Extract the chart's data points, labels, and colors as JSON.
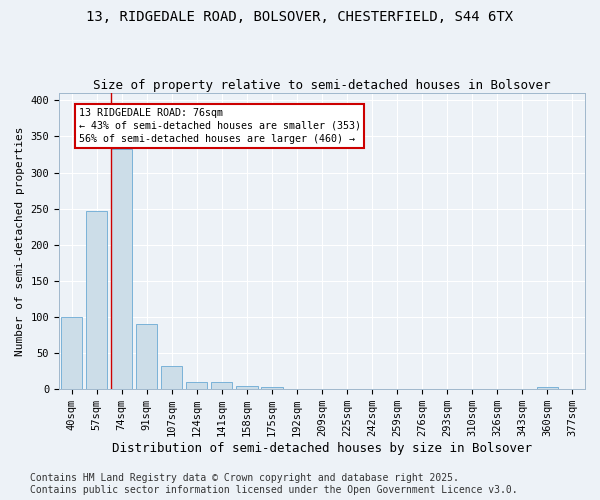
{
  "title1": "13, RIDGEDALE ROAD, BOLSOVER, CHESTERFIELD, S44 6TX",
  "title2": "Size of property relative to semi-detached houses in Bolsover",
  "xlabel": "Distribution of semi-detached houses by size in Bolsover",
  "ylabel": "Number of semi-detached properties",
  "footnote": "Contains HM Land Registry data © Crown copyright and database right 2025.\nContains public sector information licensed under the Open Government Licence v3.0.",
  "categories": [
    "40sqm",
    "57sqm",
    "74sqm",
    "91sqm",
    "107sqm",
    "124sqm",
    "141sqm",
    "158sqm",
    "175sqm",
    "192sqm",
    "209sqm",
    "225sqm",
    "242sqm",
    "259sqm",
    "276sqm",
    "293sqm",
    "310sqm",
    "326sqm",
    "343sqm",
    "360sqm",
    "377sqm"
  ],
  "values": [
    100,
    247,
    333,
    90,
    32,
    10,
    10,
    5,
    3,
    0,
    0,
    0,
    0,
    0,
    0,
    0,
    0,
    0,
    0,
    3,
    0
  ],
  "bar_color": "#ccdde8",
  "bar_edge_color": "#6aaad4",
  "annotation_title": "13 RIDGEDALE ROAD: 76sqm",
  "annotation_line1": "← 43% of semi-detached houses are smaller (353)",
  "annotation_line2": "56% of semi-detached houses are larger (460) →",
  "annotation_box_color": "#cc0000",
  "vline_color": "#cc0000",
  "vline_bin_index": 2,
  "ylim": [
    0,
    410
  ],
  "yticks": [
    0,
    50,
    100,
    150,
    200,
    250,
    300,
    350,
    400
  ],
  "background_color": "#edf2f7",
  "grid_color": "#ffffff",
  "title1_fontsize": 10,
  "title2_fontsize": 9,
  "tick_fontsize": 7.5,
  "xlabel_fontsize": 9,
  "ylabel_fontsize": 8,
  "footnote_fontsize": 7
}
